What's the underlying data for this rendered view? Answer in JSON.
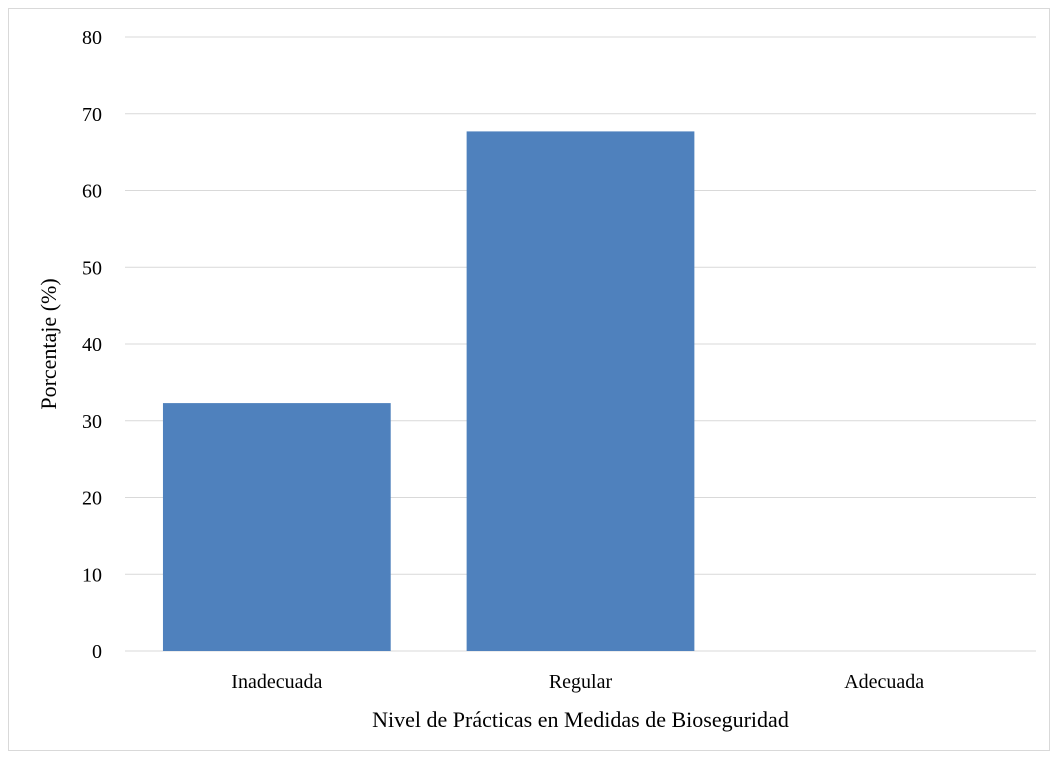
{
  "chart_data": {
    "type": "bar",
    "title": "",
    "xlabel": "Nivel de Prácticas en Medidas de Bioseguridad",
    "ylabel": "Porcentaje (%)",
    "categories": [
      "Inadecuada",
      "Regular",
      "Adecuada"
    ],
    "values": [
      32.3,
      67.7,
      0
    ],
    "ylim": [
      0,
      80
    ],
    "yticks": [
      "0",
      "10",
      "20",
      "30",
      "40",
      "50",
      "60",
      "70",
      "80"
    ],
    "grid": true,
    "legend": "none",
    "bar_color": "#4f81bd",
    "grid_color": "#d9d9d9"
  }
}
